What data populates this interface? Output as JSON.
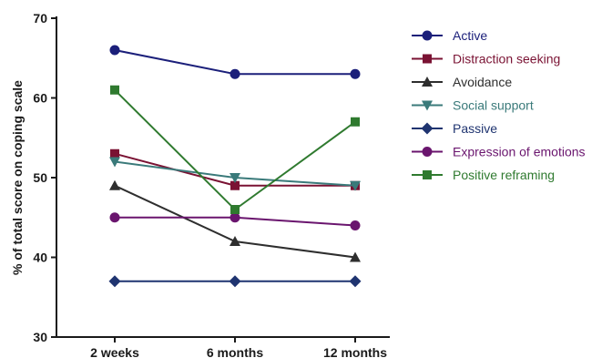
{
  "chart_data": {
    "type": "line",
    "title": "",
    "xlabel": "",
    "ylabel": "% of total score on coping scale",
    "categories": [
      "2 weeks",
      "6 months",
      "12 months"
    ],
    "ylim": [
      30,
      70
    ],
    "yticks": [
      "30",
      "40",
      "50",
      "60",
      "70"
    ],
    "grid": false,
    "legend_position": "right",
    "series": [
      {
        "name": "Active",
        "values": [
          66,
          63,
          63
        ],
        "color": "#1b1f7a",
        "marker": "circle"
      },
      {
        "name": "Distraction seeking",
        "values": [
          53,
          49,
          49
        ],
        "color": "#7a1233",
        "marker": "square"
      },
      {
        "name": "Avoidance",
        "values": [
          49,
          42,
          40
        ],
        "color": "#2e2e2e",
        "marker": "triangle-up"
      },
      {
        "name": "Social support",
        "values": [
          52,
          50,
          49
        ],
        "color": "#3a7a7a",
        "marker": "triangle-down"
      },
      {
        "name": "Passive",
        "values": [
          37,
          37,
          37
        ],
        "color": "#1f3470",
        "marker": "diamond"
      },
      {
        "name": "Expression of emotions",
        "values": [
          45,
          45,
          44
        ],
        "color": "#6a156e",
        "marker": "circle"
      },
      {
        "name": "Positive reframing",
        "values": [
          61,
          46,
          57
        ],
        "color": "#2f7a2f",
        "marker": "square"
      }
    ]
  }
}
